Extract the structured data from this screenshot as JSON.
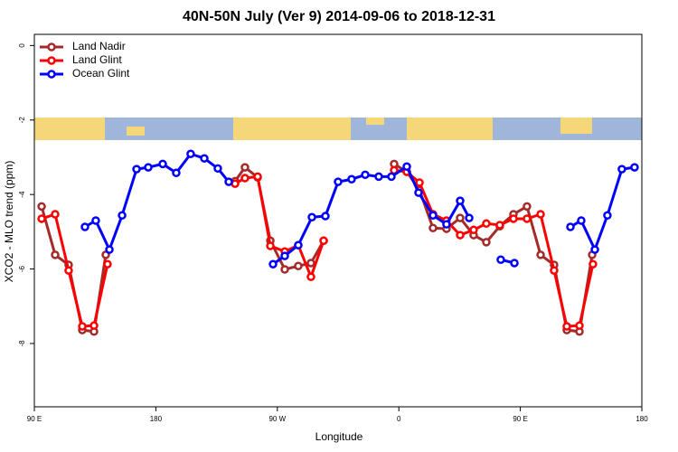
{
  "chart_data": {
    "type": "line",
    "title": "40N-50N July (Ver 9)   2014-09-06 to 2018-12-31",
    "x_label": "Longitude",
    "y_label": "XCO2 - MLO trend (ppm)",
    "xlim": [
      90,
      540
    ],
    "xticks": [
      {
        "value": 90,
        "label": "90 E"
      },
      180,
      {
        "value": 270,
        "label": "90 W"
      },
      {
        "value": 360,
        "label": "0"
      },
      {
        "value": 450,
        "label": "90 E"
      },
      {
        "value": 540,
        "label": "180"
      }
    ],
    "ylim": [
      -9.7,
      0.3
    ],
    "yticks": [
      0,
      -2,
      -4,
      -6,
      -8
    ],
    "legend": "top-left",
    "series": [
      {
        "name": "Land Nadir",
        "color": "#a52a2a",
        "x": [
          95.4,
          105.4,
          115.4,
          125.5,
          134.2,
          142.9,
          null,
          238.7,
          246.0,
          255.4,
          264.8,
          275.5,
          285.5,
          294.9,
          304.3,
          null,
          356.5,
          365.9,
          375.3,
          385.3,
          395.3,
          405.4,
          415.4,
          424.8,
          434.8,
          444.9,
          454.9,
          465.0,
          475.0,
          484.4,
          493.8,
          503.2
        ],
        "values": [
          -4.32,
          -5.62,
          -5.89,
          -7.64,
          -7.68,
          -5.62,
          null,
          -3.64,
          -3.27,
          -3.54,
          -5.24,
          -6.01,
          -5.92,
          -5.84,
          -5.24,
          null,
          -3.18,
          -3.39,
          -3.88,
          -4.9,
          -4.92,
          -4.63,
          -5.09,
          -5.28,
          -4.85,
          -4.53,
          -4.32,
          -5.62,
          -5.89,
          -7.64,
          -7.68,
          -5.62
        ]
      },
      {
        "name": "Land Glint",
        "color": "#ff0000",
        "x": [
          95.4,
          105.4,
          115.4,
          125.5,
          134.2,
          144.2,
          null,
          238.7,
          246.0,
          255.4,
          264.8,
          275.5,
          285.5,
          294.9,
          304.3,
          null,
          356.5,
          365.9,
          375.3,
          385.3,
          395.3,
          405.4,
          415.4,
          424.8,
          434.8,
          444.9,
          454.9,
          465.0,
          475.0,
          484.4,
          493.8,
          503.8
        ],
        "values": [
          -4.65,
          -4.53,
          -6.04,
          -7.54,
          -7.52,
          -5.87,
          null,
          -3.71,
          -3.56,
          -3.52,
          -5.38,
          -5.53,
          -5.36,
          -6.21,
          -5.24,
          null,
          -3.35,
          -3.39,
          -3.68,
          -4.53,
          -4.7,
          -5.09,
          -4.95,
          -4.78,
          -4.82,
          -4.65,
          -4.65,
          -4.53,
          -6.04,
          -7.54,
          -7.52,
          -5.87
        ]
      },
      {
        "name": "Ocean Glint",
        "color": "#0000ff",
        "x": [
          127.5,
          135.5,
          145.6,
          155.0,
          165.7,
          174.4,
          185.1,
          195.1,
          205.8,
          215.9,
          225.9,
          234.0,
          null,
          266.8,
          275.5,
          285.5,
          295.6,
          305.6,
          315.0,
          325.0,
          335.1,
          345.1,
          354.5,
          365.9,
          374.6,
          385.3,
          395.3,
          405.4,
          412.1,
          null,
          435.5,
          445.6,
          null,
          487.1,
          495.1,
          505.2,
          514.5,
          525.2,
          534.6
        ],
        "values": [
          -4.87,
          -4.7,
          -5.48,
          -4.56,
          -3.32,
          -3.27,
          -3.18,
          -3.42,
          -2.91,
          -3.03,
          -3.3,
          -3.66,
          null,
          -5.87,
          -5.65,
          -5.36,
          -4.61,
          -4.58,
          -3.66,
          -3.59,
          -3.47,
          -3.52,
          -3.52,
          -3.25,
          -3.95,
          -4.56,
          -4.8,
          -4.17,
          -4.63,
          null,
          -5.75,
          -5.84,
          null,
          -4.87,
          -4.7,
          -5.48,
          -4.56,
          -3.32,
          -3.27
        ]
      }
    ]
  }
}
